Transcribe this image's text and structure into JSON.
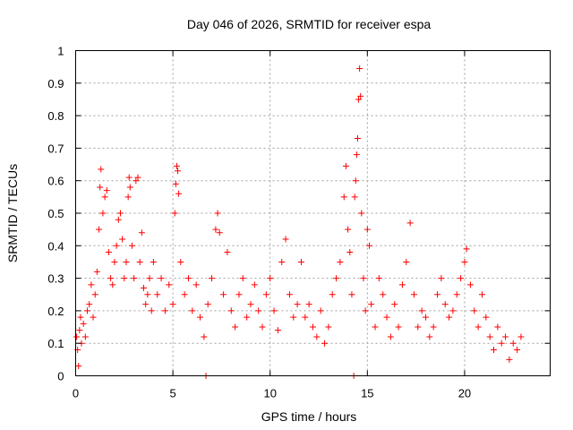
{
  "chart_data": {
    "type": "scatter",
    "title": "Day 046 of 2026, SRMTID for receiver espa",
    "xlabel": "GPS time / hours",
    "ylabel": "SRMTID / TECUs",
    "xlim": [
      0,
      24.4
    ],
    "ylim": [
      0,
      1
    ],
    "xticks": [
      0,
      5,
      10,
      15,
      20
    ],
    "xtick_labels": [
      "0",
      "5",
      "10",
      "15",
      "20"
    ],
    "yticks": [
      0,
      0.1,
      0.2,
      0.3,
      0.4,
      0.5,
      0.6,
      0.7,
      0.8,
      0.9,
      1
    ],
    "ytick_labels": [
      "0",
      "0.1",
      "0.2",
      "0.3",
      "0.4",
      "0.5",
      "0.6",
      "0.7",
      "0.8",
      "0.9",
      "1"
    ],
    "grid": true,
    "marker": "+",
    "color": "#ff0000",
    "series": [
      {
        "name": "SRMTID",
        "points": [
          [
            0.05,
            0.12
          ],
          [
            0.1,
            0.08
          ],
          [
            0.15,
            0.03
          ],
          [
            0.2,
            0.14
          ],
          [
            0.25,
            0.18
          ],
          [
            0.3,
            0.1
          ],
          [
            0.4,
            0.16
          ],
          [
            0.5,
            0.12
          ],
          [
            0.6,
            0.2
          ],
          [
            0.7,
            0.22
          ],
          [
            0.8,
            0.28
          ],
          [
            0.9,
            0.18
          ],
          [
            1.0,
            0.25
          ],
          [
            1.1,
            0.32
          ],
          [
            1.2,
            0.45
          ],
          [
            1.25,
            0.58
          ],
          [
            1.3,
            0.635
          ],
          [
            1.4,
            0.5
          ],
          [
            1.5,
            0.55
          ],
          [
            1.6,
            0.57
          ],
          [
            1.7,
            0.38
          ],
          [
            1.8,
            0.3
          ],
          [
            1.9,
            0.28
          ],
          [
            2.0,
            0.35
          ],
          [
            2.1,
            0.4
          ],
          [
            2.2,
            0.48
          ],
          [
            2.3,
            0.5
          ],
          [
            2.4,
            0.42
          ],
          [
            2.5,
            0.3
          ],
          [
            2.6,
            0.35
          ],
          [
            2.7,
            0.55
          ],
          [
            2.75,
            0.61
          ],
          [
            2.8,
            0.58
          ],
          [
            2.9,
            0.4
          ],
          [
            3.0,
            0.3
          ],
          [
            3.1,
            0.6
          ],
          [
            3.2,
            0.61
          ],
          [
            3.3,
            0.35
          ],
          [
            3.4,
            0.44
          ],
          [
            3.5,
            0.27
          ],
          [
            3.6,
            0.22
          ],
          [
            3.7,
            0.25
          ],
          [
            3.8,
            0.3
          ],
          [
            3.9,
            0.2
          ],
          [
            4.0,
            0.35
          ],
          [
            4.2,
            0.25
          ],
          [
            4.4,
            0.3
          ],
          [
            4.6,
            0.2
          ],
          [
            4.8,
            0.28
          ],
          [
            5.0,
            0.22
          ],
          [
            5.1,
            0.5
          ],
          [
            5.15,
            0.59
          ],
          [
            5.2,
            0.645
          ],
          [
            5.25,
            0.63
          ],
          [
            5.3,
            0.56
          ],
          [
            5.4,
            0.35
          ],
          [
            5.6,
            0.25
          ],
          [
            5.8,
            0.3
          ],
          [
            6.0,
            0.2
          ],
          [
            6.2,
            0.28
          ],
          [
            6.4,
            0.18
          ],
          [
            6.6,
            0.12
          ],
          [
            6.7,
            0.0
          ],
          [
            6.8,
            0.22
          ],
          [
            7.0,
            0.3
          ],
          [
            7.2,
            0.45
          ],
          [
            7.3,
            0.5
          ],
          [
            7.4,
            0.44
          ],
          [
            7.6,
            0.25
          ],
          [
            7.8,
            0.38
          ],
          [
            8.0,
            0.2
          ],
          [
            8.2,
            0.15
          ],
          [
            8.4,
            0.25
          ],
          [
            8.6,
            0.3
          ],
          [
            8.8,
            0.18
          ],
          [
            9.0,
            0.22
          ],
          [
            9.2,
            0.28
          ],
          [
            9.4,
            0.2
          ],
          [
            9.6,
            0.15
          ],
          [
            9.8,
            0.25
          ],
          [
            10.0,
            0.3
          ],
          [
            10.2,
            0.2
          ],
          [
            10.4,
            0.14
          ],
          [
            10.6,
            0.35
          ],
          [
            10.8,
            0.42
          ],
          [
            11.0,
            0.25
          ],
          [
            11.2,
            0.18
          ],
          [
            11.4,
            0.22
          ],
          [
            11.6,
            0.35
          ],
          [
            11.8,
            0.18
          ],
          [
            12.0,
            0.22
          ],
          [
            12.2,
            0.15
          ],
          [
            12.4,
            0.12
          ],
          [
            12.6,
            0.2
          ],
          [
            12.8,
            0.1
          ],
          [
            13.0,
            0.15
          ],
          [
            13.2,
            0.25
          ],
          [
            13.4,
            0.3
          ],
          [
            13.6,
            0.35
          ],
          [
            13.8,
            0.55
          ],
          [
            13.9,
            0.645
          ],
          [
            14.0,
            0.45
          ],
          [
            14.1,
            0.38
          ],
          [
            14.2,
            0.25
          ],
          [
            14.3,
            0.0
          ],
          [
            14.35,
            0.55
          ],
          [
            14.4,
            0.6
          ],
          [
            14.45,
            0.68
          ],
          [
            14.5,
            0.73
          ],
          [
            14.55,
            0.85
          ],
          [
            14.6,
            0.945
          ],
          [
            14.65,
            0.86
          ],
          [
            14.7,
            0.5
          ],
          [
            14.8,
            0.3
          ],
          [
            14.9,
            0.2
          ],
          [
            15.0,
            0.45
          ],
          [
            15.1,
            0.4
          ],
          [
            15.2,
            0.22
          ],
          [
            15.4,
            0.15
          ],
          [
            15.6,
            0.3
          ],
          [
            15.8,
            0.25
          ],
          [
            16.0,
            0.18
          ],
          [
            16.2,
            0.12
          ],
          [
            16.4,
            0.22
          ],
          [
            16.6,
            0.15
          ],
          [
            16.8,
            0.28
          ],
          [
            17.0,
            0.35
          ],
          [
            17.2,
            0.47
          ],
          [
            17.4,
            0.25
          ],
          [
            17.6,
            0.15
          ],
          [
            17.8,
            0.2
          ],
          [
            18.0,
            0.18
          ],
          [
            18.2,
            0.12
          ],
          [
            18.4,
            0.15
          ],
          [
            18.6,
            0.25
          ],
          [
            18.8,
            0.3
          ],
          [
            19.0,
            0.22
          ],
          [
            19.2,
            0.18
          ],
          [
            19.4,
            0.2
          ],
          [
            19.6,
            0.25
          ],
          [
            19.8,
            0.3
          ],
          [
            20.0,
            0.35
          ],
          [
            20.1,
            0.39
          ],
          [
            20.3,
            0.28
          ],
          [
            20.5,
            0.2
          ],
          [
            20.7,
            0.15
          ],
          [
            20.9,
            0.25
          ],
          [
            21.1,
            0.18
          ],
          [
            21.3,
            0.12
          ],
          [
            21.5,
            0.08
          ],
          [
            21.7,
            0.15
          ],
          [
            21.9,
            0.1
          ],
          [
            22.1,
            0.12
          ],
          [
            22.3,
            0.05
          ],
          [
            22.5,
            0.1
          ],
          [
            22.7,
            0.08
          ],
          [
            22.9,
            0.12
          ]
        ]
      }
    ]
  }
}
